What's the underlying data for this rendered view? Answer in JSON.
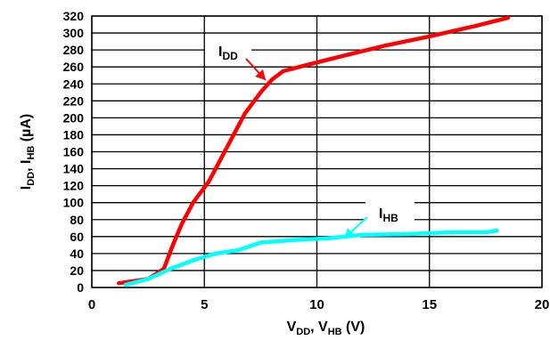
{
  "chart_data": {
    "type": "line",
    "xlabel": {
      "main1": "V",
      "sub1": "DD",
      "sep": ", ",
      "main2": "V",
      "sub2": "HB",
      "tail": " (V)"
    },
    "ylabel": {
      "main1": "I",
      "sub1": "DD",
      "sep": ", ",
      "main2": "I",
      "sub2": "HB",
      "tail": " (µA)"
    },
    "xlim": [
      0,
      20
    ],
    "ylim": [
      0,
      320
    ],
    "x_ticks": [
      0,
      5,
      10,
      15,
      20
    ],
    "y_ticks": [
      0,
      20,
      40,
      60,
      80,
      100,
      120,
      140,
      160,
      180,
      200,
      220,
      240,
      260,
      280,
      300,
      320
    ],
    "grid": true,
    "series": [
      {
        "name": "IDD",
        "label": {
          "main": "I",
          "sub": "DD"
        },
        "color": "#ff0000",
        "x": [
          1.2,
          2.5,
          3.2,
          3.6,
          4.0,
          4.5,
          5.2,
          6.0,
          6.8,
          7.5,
          8.0,
          8.5,
          9.5,
          11,
          13,
          15,
          17,
          18.5
        ],
        "y": [
          5,
          10,
          22,
          50,
          75,
          100,
          125,
          165,
          205,
          230,
          245,
          255,
          262,
          272,
          285,
          296,
          308,
          318
        ]
      },
      {
        "name": "IHB",
        "label": {
          "main": "I",
          "sub": "HB"
        },
        "color": "#00ffff",
        "x": [
          1.5,
          2.5,
          3.5,
          4.5,
          5.5,
          6.5,
          7.5,
          9,
          10.5,
          12,
          14,
          16,
          17.5,
          18
        ],
        "y": [
          3,
          10,
          22,
          32,
          40,
          44,
          53,
          56,
          58,
          62,
          63,
          65,
          65,
          67
        ]
      }
    ]
  }
}
